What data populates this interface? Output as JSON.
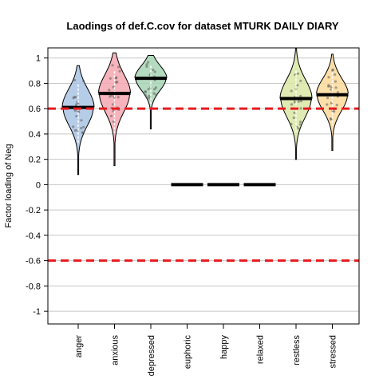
{
  "chart_data": {
    "type": "violin",
    "title": "Laodings of def.C.cov for dataset MTURK DAILY DIARY",
    "xlabel": "",
    "ylabel": "Factor loading of Neg",
    "ylim": [
      -1.1,
      1.08
    ],
    "yticks": [
      "1",
      "0.8",
      "0.6",
      "0.4",
      "0.2",
      "0",
      "-0.2",
      "-0.4",
      "-0.6",
      "-0.8",
      "-1"
    ],
    "ytick_values": [
      1,
      0.8,
      0.6,
      0.4,
      0.2,
      0,
      -0.2,
      -0.4,
      -0.6,
      -0.8,
      -1
    ],
    "categories": [
      "anger",
      "anxious",
      "depressed",
      "euphoric",
      "happy",
      "relaxed",
      "restless",
      "stressed"
    ],
    "means": [
      0.61,
      0.72,
      0.84,
      0,
      0,
      0,
      0.68,
      0.71
    ],
    "ranges": [
      [
        0.08,
        0.94
      ],
      [
        0.15,
        1.04
      ],
      [
        0.44,
        1.02
      ],
      [
        0,
        0
      ],
      [
        0,
        0
      ],
      [
        0,
        0
      ],
      [
        0.2,
        1.08
      ],
      [
        0.27,
        1.03
      ]
    ],
    "colors": [
      "#a9c4e4",
      "#f4a7b0",
      "#a7d3b4",
      null,
      null,
      null,
      "#d9e8a6",
      "#fbd99a"
    ],
    "reference_lines": [
      0.6,
      -0.6
    ],
    "reference_color": "#e8191f",
    "grid": true
  }
}
